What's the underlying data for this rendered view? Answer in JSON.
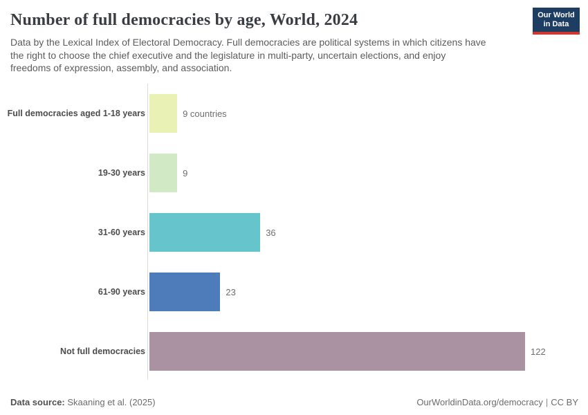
{
  "header": {
    "title": "Number of full democracies by age, World, 2024",
    "subtitle_lines": [
      "Data by the Lexical Index of Electoral Democracy. Full democracies are political systems in which citizens have",
      "the right to choose the chief executive and the legislature in multi-party, uncertain elections, and enjoy",
      "freedoms of expression, assembly, and association."
    ],
    "logo": {
      "line1": "Our World",
      "line2": "in Data",
      "bg_color": "#1d3d63",
      "accent_color": "#d0382f"
    }
  },
  "chart_data": {
    "type": "bar",
    "orientation": "horizontal",
    "title": "Number of full democracies by age, World, 2024",
    "categories": [
      "Full democracies aged 1-18 years",
      "19-30 years",
      "31-60 years",
      "61-90 years",
      "Not full democracies"
    ],
    "values": [
      9,
      9,
      36,
      23,
      122
    ],
    "value_labels": [
      "9 countries",
      "9",
      "36",
      "23",
      "122"
    ],
    "colors": [
      "#e9f1b5",
      "#d1e9c4",
      "#65c4cc",
      "#4e7cba",
      "#aa92a2"
    ],
    "xlabel": "",
    "ylabel": "",
    "xlim": [
      0,
      122
    ],
    "grid": false,
    "legend": false,
    "axis_line_color": "#dcdcdc"
  },
  "footer": {
    "source_label": "Data source:",
    "source_value": "Skaaning et al. (2025)",
    "url": "OurWorldinData.org/democracy",
    "separator": "|",
    "license": "CC BY"
  }
}
